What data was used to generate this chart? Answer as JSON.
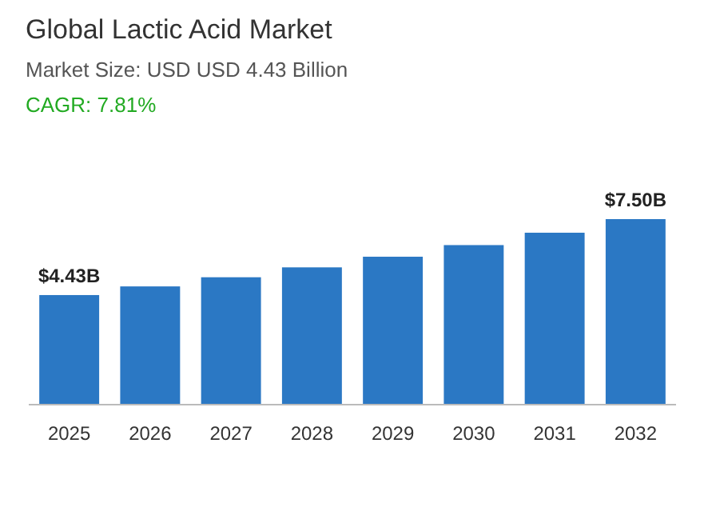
{
  "chart_data": {
    "type": "bar",
    "title": "Global Lactic Acid Market",
    "subtitle": "Market Size: USD USD 4.43 Billion",
    "annotations": [
      "CAGR: 7.81%"
    ],
    "categories": [
      "2025",
      "2026",
      "2027",
      "2028",
      "2029",
      "2030",
      "2031",
      "2032"
    ],
    "values": [
      4.43,
      4.78,
      5.15,
      5.55,
      5.98,
      6.45,
      6.95,
      7.5
    ],
    "value_labels": [
      "$4.43B",
      null,
      null,
      null,
      null,
      null,
      null,
      "$7.50B"
    ],
    "color": "#2b78c4",
    "tick_labels": "x"
  }
}
